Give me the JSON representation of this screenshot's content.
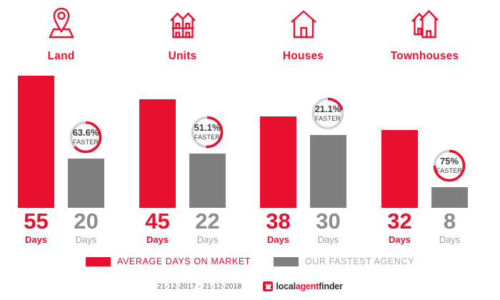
{
  "colors": {
    "red": "#E8102E",
    "grey_bar": "#7F7F7F",
    "ring_grey": "#D2D2D2",
    "badge_text": "#3A3A3A",
    "grey_number": "#8C8C8C",
    "grey_days_label": "#9E9E9E",
    "legend_grey_text": "#ACACAC",
    "footer_text": "#595959",
    "logo_dark": "#2D2D2D"
  },
  "chart_data": {
    "type": "bar",
    "categories": [
      "Land",
      "Units",
      "Houses",
      "Townhouses"
    ],
    "category_icons": [
      "land-pin-icon",
      "units-duplex-icon",
      "house-icon",
      "townhouses-icon"
    ],
    "unit_label": "Days",
    "faster_label": "FASTER",
    "series": [
      {
        "name": "AVERAGE DAYS ON MARKET",
        "color": "#E8102E",
        "values": [
          55,
          45,
          38,
          32
        ]
      },
      {
        "name": "OUR FASTEST AGENCY",
        "color": "#7F7F7F",
        "values": [
          20,
          22,
          30,
          8
        ]
      }
    ],
    "badges": [
      {
        "percent": 63.6,
        "label": "63.6%"
      },
      {
        "percent": 51.1,
        "label": "51.1%"
      },
      {
        "percent": 21.1,
        "label": "21.1%"
      },
      {
        "percent": 75,
        "label": "75%"
      }
    ],
    "title": "",
    "xlabel": "",
    "ylabel": "",
    "axes_hidden": true,
    "grid": false,
    "legend_position": "bottom"
  },
  "legend": {
    "items": [
      {
        "label": "AVERAGE DAYS ON MARKET",
        "color": "#E8102E"
      },
      {
        "label": "OUR FASTEST AGENCY",
        "color": "#7F7F7F"
      }
    ]
  },
  "footer": {
    "date_range": "21-12-2017 - 21-12-2018",
    "logo": {
      "icon": "castle-icon",
      "parts": [
        {
          "text": "local",
          "color": "#2D2D2D"
        },
        {
          "text": "agent",
          "color": "#E8102E"
        },
        {
          "text": "finder",
          "color": "#2D2D2D"
        }
      ]
    }
  }
}
